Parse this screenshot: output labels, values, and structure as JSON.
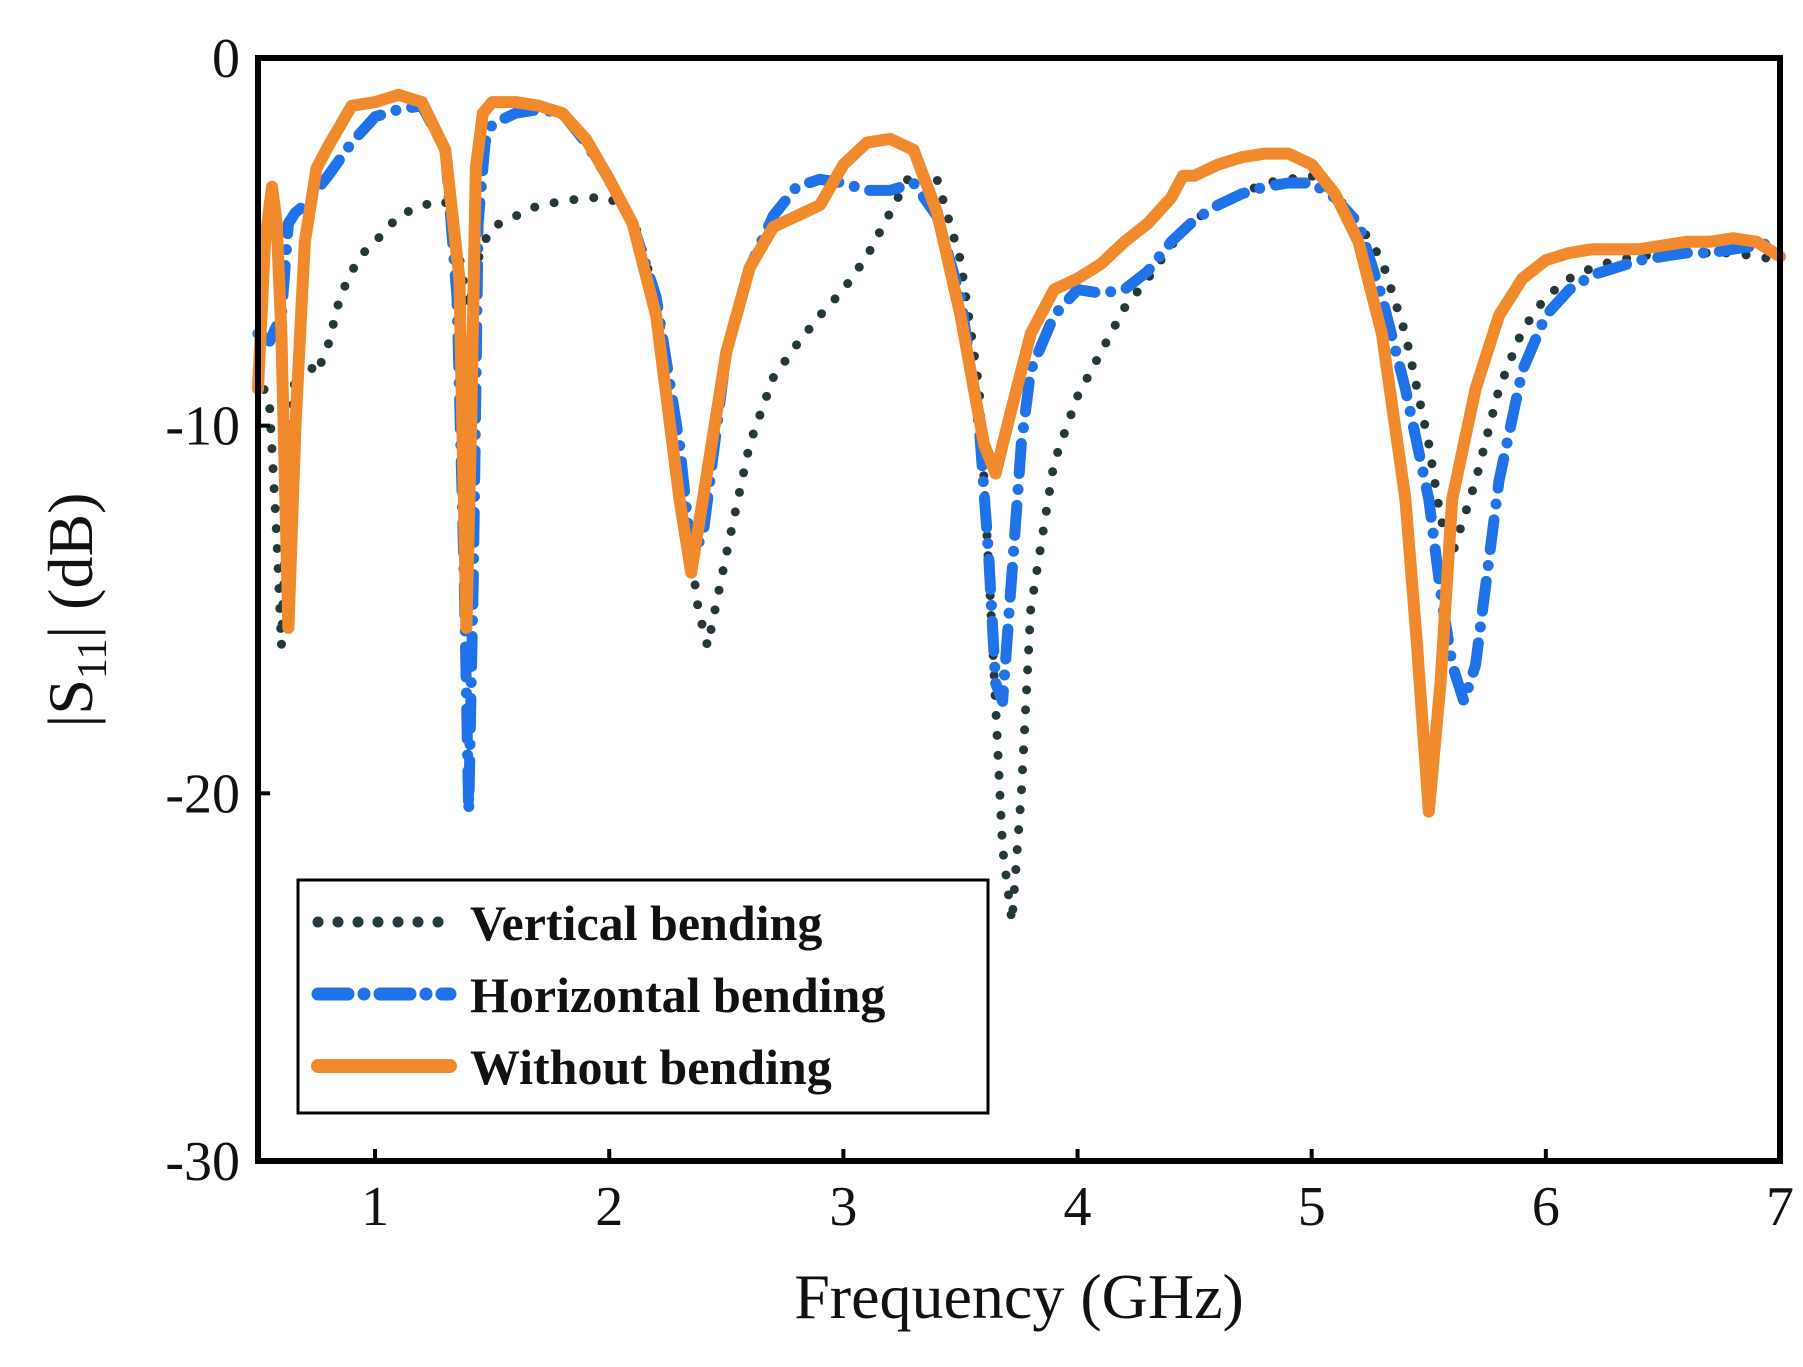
{
  "chart_data": {
    "type": "line",
    "title": "",
    "xlabel": "Frequency (GHz)",
    "ylabel": {
      "prefix": "|S",
      "sub": "11",
      "suffix": "| (dB)"
    },
    "xlim": [
      0.5,
      7
    ],
    "ylim": [
      -30,
      0
    ],
    "xticks": [
      1,
      2,
      3,
      4,
      5,
      6,
      7
    ],
    "xtick_labels": [
      "1",
      "2",
      "3",
      "4",
      "5",
      "6",
      "7"
    ],
    "yticks": [
      0,
      -10,
      -20,
      -30
    ],
    "ytick_labels": [
      "0",
      "-10",
      "-20",
      "-30"
    ],
    "grid": false,
    "legend_position": "bottom-left",
    "series": [
      {
        "name": "Vertical bending",
        "style": "dotted",
        "color": "#25393d",
        "x": [
          0.5,
          0.55,
          0.58,
          0.6,
          0.63,
          0.66,
          0.7,
          0.75,
          0.8,
          0.85,
          0.9,
          0.95,
          1.0,
          1.1,
          1.2,
          1.3,
          1.35,
          1.38,
          1.4,
          1.42,
          1.45,
          1.5,
          1.6,
          1.7,
          1.8,
          1.9,
          2.0,
          2.1,
          2.2,
          2.3,
          2.38,
          2.42,
          2.5,
          2.6,
          2.7,
          2.8,
          2.9,
          3.0,
          3.1,
          3.2,
          3.3,
          3.4,
          3.5,
          3.58,
          3.63,
          3.68,
          3.72,
          3.76,
          3.8,
          3.9,
          4.0,
          4.1,
          4.2,
          4.3,
          4.4,
          4.5,
          4.6,
          4.7,
          4.8,
          4.9,
          5.0,
          5.1,
          5.2,
          5.3,
          5.4,
          5.5,
          5.55,
          5.6,
          5.65,
          5.7,
          5.8,
          5.9,
          6.0,
          6.1,
          6.2,
          6.3,
          6.4,
          6.5,
          6.6,
          6.7,
          6.8,
          6.9,
          7.0
        ],
        "y": [
          -8.5,
          -9.5,
          -13.0,
          -16.0,
          -11.0,
          -8.5,
          -8.2,
          -8.6,
          -7.8,
          -6.5,
          -5.8,
          -5.3,
          -5.0,
          -4.3,
          -4.0,
          -3.9,
          -5.0,
          -6.2,
          -6.8,
          -6.2,
          -5.2,
          -4.6,
          -4.3,
          -4.0,
          -3.9,
          -3.8,
          -3.8,
          -4.3,
          -6.5,
          -11.0,
          -15.0,
          -16.0,
          -13.5,
          -10.5,
          -8.7,
          -7.8,
          -7.0,
          -6.3,
          -5.4,
          -4.2,
          -3.0,
          -3.3,
          -5.5,
          -9.0,
          -15.0,
          -21.5,
          -23.5,
          -20.0,
          -15.0,
          -11.0,
          -9.2,
          -8.0,
          -6.8,
          -6.0,
          -5.1,
          -4.4,
          -4.0,
          -3.7,
          -3.4,
          -3.3,
          -3.2,
          -3.7,
          -4.5,
          -5.5,
          -7.5,
          -10.5,
          -12.5,
          -13.5,
          -12.5,
          -11.5,
          -9.0,
          -7.4,
          -6.5,
          -6.0,
          -5.7,
          -5.5,
          -5.4,
          -5.3,
          -5.3,
          -5.3,
          -5.3,
          -5.4,
          -5.5
        ]
      },
      {
        "name": "Horizontal bending",
        "style": "dashdot",
        "color": "#1f72e8",
        "x": [
          0.5,
          0.55,
          0.6,
          0.63,
          0.66,
          0.7,
          0.8,
          0.9,
          1.0,
          1.1,
          1.2,
          1.3,
          1.35,
          1.38,
          1.4,
          1.42,
          1.44,
          1.47,
          1.5,
          1.6,
          1.7,
          1.8,
          1.9,
          2.0,
          2.1,
          2.2,
          2.3,
          2.35,
          2.4,
          2.45,
          2.5,
          2.6,
          2.7,
          2.8,
          2.9,
          3.0,
          3.1,
          3.2,
          3.3,
          3.4,
          3.5,
          3.58,
          3.62,
          3.65,
          3.68,
          3.72,
          3.76,
          3.8,
          3.9,
          4.0,
          4.1,
          4.2,
          4.3,
          4.4,
          4.5,
          4.6,
          4.7,
          4.8,
          4.9,
          5.0,
          5.1,
          5.2,
          5.3,
          5.4,
          5.5,
          5.55,
          5.6,
          5.65,
          5.7,
          5.75,
          5.8,
          5.9,
          6.0,
          6.1,
          6.2,
          6.3,
          6.4,
          6.5,
          6.6,
          6.7,
          6.8,
          6.9,
          7.0
        ],
        "y": [
          -7.5,
          -7.7,
          -7.0,
          -4.5,
          -4.2,
          -4.0,
          -3.2,
          -2.3,
          -1.6,
          -1.4,
          -1.3,
          -2.5,
          -6.5,
          -14.0,
          -20.5,
          -14.0,
          -4.5,
          -2.3,
          -1.8,
          -1.5,
          -1.4,
          -1.5,
          -2.3,
          -3.3,
          -4.5,
          -6.5,
          -10.5,
          -13.5,
          -13.0,
          -10.5,
          -8.0,
          -5.7,
          -4.3,
          -3.5,
          -3.3,
          -3.4,
          -3.6,
          -3.6,
          -3.4,
          -4.3,
          -6.5,
          -10.0,
          -13.5,
          -17.0,
          -17.5,
          -14.0,
          -10.5,
          -8.5,
          -7.0,
          -6.3,
          -6.4,
          -6.3,
          -5.8,
          -5.0,
          -4.4,
          -4.0,
          -3.7,
          -3.5,
          -3.4,
          -3.4,
          -3.8,
          -4.5,
          -6.5,
          -9.0,
          -12.0,
          -14.5,
          -16.5,
          -17.5,
          -16.5,
          -14.0,
          -11.5,
          -8.5,
          -7.0,
          -6.3,
          -5.9,
          -5.7,
          -5.5,
          -5.4,
          -5.3,
          -5.3,
          -5.2,
          -5.1,
          -5.0
        ]
      },
      {
        "name": "Without bending",
        "style": "solid",
        "color": "#f08a2d",
        "x": [
          0.5,
          0.53,
          0.56,
          0.58,
          0.6,
          0.63,
          0.66,
          0.7,
          0.75,
          0.8,
          0.9,
          1.0,
          1.1,
          1.2,
          1.3,
          1.36,
          1.39,
          1.41,
          1.43,
          1.46,
          1.5,
          1.6,
          1.7,
          1.8,
          1.9,
          2.0,
          2.1,
          2.2,
          2.3,
          2.35,
          2.4,
          2.5,
          2.6,
          2.7,
          2.8,
          2.9,
          3.0,
          3.1,
          3.2,
          3.3,
          3.4,
          3.5,
          3.6,
          3.65,
          3.7,
          3.8,
          3.9,
          4.0,
          4.1,
          4.2,
          4.3,
          4.4,
          4.45,
          4.5,
          4.6,
          4.7,
          4.8,
          4.9,
          5.0,
          5.1,
          5.2,
          5.3,
          5.4,
          5.45,
          5.5,
          5.55,
          5.6,
          5.7,
          5.8,
          5.9,
          6.0,
          6.1,
          6.2,
          6.3,
          6.4,
          6.5,
          6.6,
          6.7,
          6.8,
          6.9,
          7.0
        ],
        "y": [
          -9.0,
          -5.0,
          -3.5,
          -4.5,
          -7.5,
          -15.5,
          -10.0,
          -5.0,
          -3.0,
          -2.4,
          -1.3,
          -1.2,
          -1.0,
          -1.2,
          -2.5,
          -6.0,
          -15.5,
          -10.0,
          -3.0,
          -1.5,
          -1.2,
          -1.2,
          -1.3,
          -1.5,
          -2.2,
          -3.3,
          -4.5,
          -7.0,
          -12.0,
          -14.0,
          -12.0,
          -8.0,
          -5.7,
          -4.6,
          -4.3,
          -4.0,
          -2.9,
          -2.3,
          -2.2,
          -2.5,
          -4.2,
          -7.0,
          -10.5,
          -11.3,
          -10.0,
          -7.5,
          -6.3,
          -6.0,
          -5.6,
          -5.0,
          -4.5,
          -3.8,
          -3.2,
          -3.2,
          -2.9,
          -2.7,
          -2.6,
          -2.6,
          -2.9,
          -3.7,
          -5.0,
          -7.5,
          -12.0,
          -16.0,
          -20.5,
          -17.0,
          -12.0,
          -9.0,
          -7.0,
          -6.0,
          -5.5,
          -5.3,
          -5.2,
          -5.2,
          -5.2,
          -5.1,
          -5.0,
          -5.0,
          -4.9,
          -5.0,
          -5.4
        ]
      }
    ]
  }
}
